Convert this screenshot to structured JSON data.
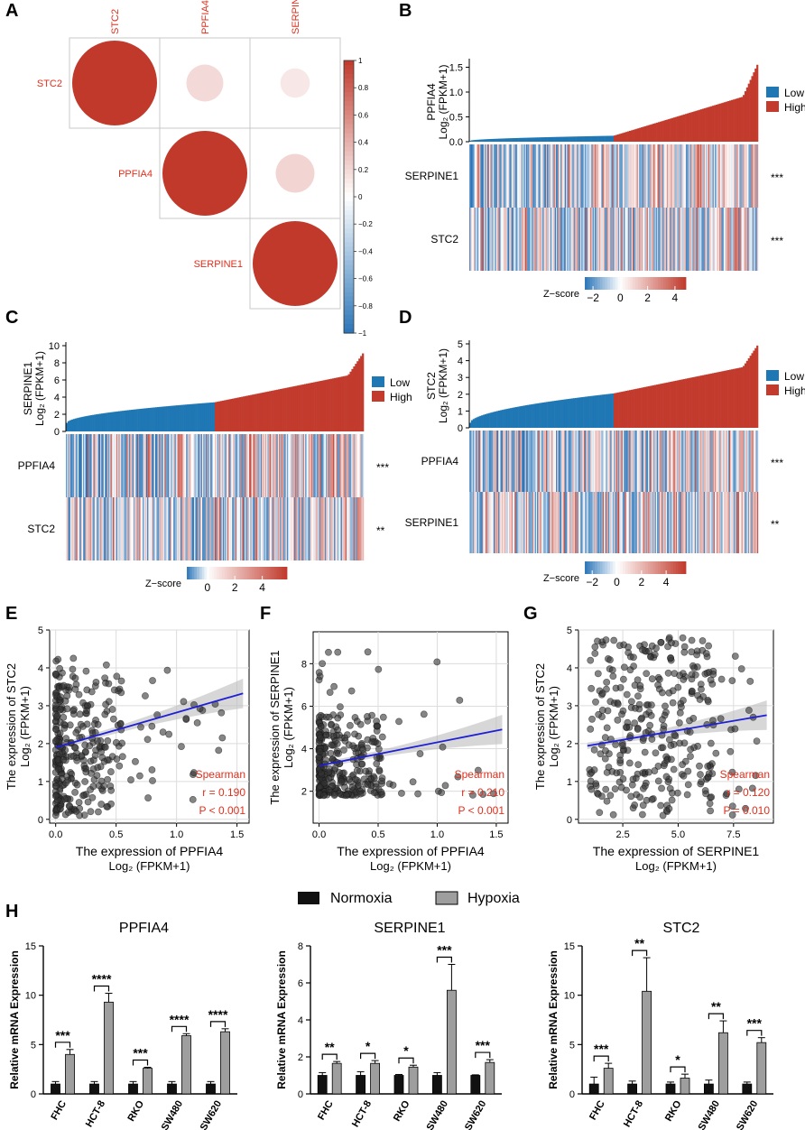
{
  "colors": {
    "red_dark": "#c23b2d",
    "blue_dark": "#1f77b4",
    "heat_blue": "#2b75b8",
    "heat_red": "#c0392b",
    "label_red": "#e0301e",
    "fit_line": "#1f1fd6",
    "ci_band": "#bdbdbd",
    "point": "#333333",
    "bar_normoxia": "#111111",
    "bar_hypoxia": "#9e9e9e"
  },
  "chart_data": [
    {
      "panel": "A",
      "type": "heatmap",
      "subtype": "correlation-circle-matrix",
      "genes": [
        "STC2",
        "PPFIA4",
        "SERPINE1"
      ],
      "matrix": [
        [
          1.0,
          0.19,
          0.12
        ],
        [
          0.19,
          1.0,
          0.21
        ],
        [
          0.12,
          0.21,
          1.0
        ]
      ],
      "colorbar_ticks": [
        "1",
        "0.8",
        "0.6",
        "0.4",
        "0.2",
        "0",
        "−0.2",
        "−0.4",
        "−0.6",
        "−0.8",
        "−1"
      ],
      "colorbar_values": [
        1,
        0.8,
        0.6,
        0.4,
        0.2,
        0,
        -0.2,
        -0.4,
        -0.6,
        -0.8,
        -1
      ]
    },
    {
      "panel": "B",
      "type": "bar",
      "subtype": "sorted-expression-with-heatmap",
      "sort_gene": "PPFIA4",
      "ylabel_top": "PPFIA4",
      "ylabel_bottom": "Log₂ (FPKM+1)",
      "ylim": [
        0,
        1.6
      ],
      "yticks": [
        "0.0",
        "0.5",
        "1.0",
        "1.5"
      ],
      "ytick_values": [
        0,
        0.5,
        1.0,
        1.5
      ],
      "split_fraction": 0.5,
      "min": 0.02,
      "median": 0.12,
      "max": 1.55,
      "legend": [
        "Low",
        "High"
      ],
      "rows": [
        {
          "gene": "SERPINE1",
          "sig": "***"
        },
        {
          "gene": "STC2",
          "sig": "***"
        }
      ],
      "zscore_label": "Z−score",
      "zscore_ticks": [
        "−2",
        "0",
        "2",
        "4"
      ],
      "zscore_tick_values": [
        -2,
        0,
        2,
        4
      ],
      "zscore_range": [
        -2.6,
        4.8
      ]
    },
    {
      "panel": "C",
      "type": "bar",
      "subtype": "sorted-expression-with-heatmap",
      "sort_gene": "SERPINE1",
      "ylabel_top": "SERPINE1",
      "ylabel_bottom": "Log₂ (FPKM+1)",
      "ylim": [
        0,
        10
      ],
      "yticks": [
        "0",
        "2",
        "4",
        "6",
        "8",
        "10"
      ],
      "ytick_values": [
        0,
        2,
        4,
        6,
        8,
        10
      ],
      "split_fraction": 0.5,
      "min": 1.0,
      "median": 3.4,
      "max": 9.1,
      "legend": [
        "Low",
        "High"
      ],
      "rows": [
        {
          "gene": "PPFIA4",
          "sig": "***"
        },
        {
          "gene": "STC2",
          "sig": "**"
        }
      ],
      "zscore_label": "Z−score",
      "zscore_ticks": [
        "0",
        "2",
        "4"
      ],
      "zscore_tick_values": [
        0,
        2,
        4
      ],
      "zscore_range": [
        -1.5,
        5.8
      ]
    },
    {
      "panel": "D",
      "type": "bar",
      "subtype": "sorted-expression-with-heatmap",
      "sort_gene": "STC2",
      "ylabel_top": "STC2",
      "ylabel_bottom": "Log₂ (FPKM+1)",
      "ylim": [
        0,
        5
      ],
      "yticks": [
        "0",
        "1",
        "2",
        "3",
        "4",
        "5"
      ],
      "ytick_values": [
        0,
        1,
        2,
        3,
        4,
        5
      ],
      "split_fraction": 0.5,
      "min": 0.3,
      "median": 2.05,
      "max": 4.9,
      "legend": [
        "Low",
        "High"
      ],
      "rows": [
        {
          "gene": "PPFIA4",
          "sig": "***"
        },
        {
          "gene": "SERPINE1",
          "sig": "**"
        }
      ],
      "zscore_label": "Z−score",
      "zscore_ticks": [
        "−2",
        "0",
        "2",
        "4"
      ],
      "zscore_tick_values": [
        -2,
        0,
        2,
        4
      ],
      "zscore_range": [
        -2.6,
        5.6
      ]
    },
    {
      "panel": "E",
      "type": "scatter",
      "xlabel": "The expression of PPFIA4",
      "xlabel2": "Log₂ (FPKM+1)",
      "ylabel": "The expression of STC2",
      "ylabel2": "Log₂ (FPKM+1)",
      "xlim": [
        -0.05,
        1.6
      ],
      "ylim": [
        -0.1,
        5.0
      ],
      "xticks": [
        "0.0",
        "0.5",
        "1.0",
        "1.5"
      ],
      "xtick_values": [
        0,
        0.5,
        1.0,
        1.5
      ],
      "yticks": [
        "0",
        "1",
        "2",
        "3",
        "4",
        "5"
      ],
      "ytick_values": [
        0,
        1,
        2,
        3,
        4,
        5
      ],
      "fit": {
        "intercept": 1.9,
        "slope": 0.92,
        "x_range": [
          0,
          1.55
        ]
      },
      "stats": [
        "Spearman",
        "r = 0.190",
        "P < 0.001"
      ]
    },
    {
      "panel": "F",
      "type": "scatter",
      "xlabel": "The expression of PPFIA4",
      "xlabel2": "Log₂ (FPKM+1)",
      "ylabel": "The expression of SERPINE1",
      "ylabel2": "Log₂ (FPKM+1)",
      "xlim": [
        -0.05,
        1.6
      ],
      "ylim": [
        0.5,
        9.5
      ],
      "xticks": [
        "0.0",
        "0.5",
        "1.0",
        "1.5"
      ],
      "xtick_values": [
        0,
        0.5,
        1.0,
        1.5
      ],
      "yticks": [
        "2",
        "4",
        "6",
        "8"
      ],
      "ytick_values": [
        2,
        4,
        6,
        8
      ],
      "fit": {
        "intercept": 3.2,
        "slope": 1.1,
        "x_range": [
          0,
          1.55
        ]
      },
      "stats": [
        "Spearman",
        "r = 0.210",
        "P < 0.001"
      ]
    },
    {
      "panel": "G",
      "type": "scatter",
      "xlabel": "The expression of SERPINE1",
      "xlabel2": "Log₂ (FPKM+1)",
      "ylabel": "The expression of STC2",
      "ylabel2": "Log₂ (FPKM+1)",
      "xlim": [
        0.5,
        9.3
      ],
      "ylim": [
        -0.1,
        5.0
      ],
      "xticks": [
        "2.5",
        "5.0",
        "7.5"
      ],
      "xtick_values": [
        2.5,
        5.0,
        7.5
      ],
      "yticks": [
        "0",
        "1",
        "2",
        "3",
        "4",
        "5"
      ],
      "ytick_values": [
        0,
        1,
        2,
        3,
        4,
        5
      ],
      "fit": {
        "intercept": 1.85,
        "slope": 0.1,
        "x_range": [
          0.9,
          9.0
        ]
      },
      "stats": [
        "Spearman",
        "r = 0.120",
        "P = 0.010"
      ]
    },
    {
      "panel": "H",
      "type": "bar",
      "title": "PPFIA4",
      "ylabel": "Relative mRNA Expression",
      "categories": [
        "FHC",
        "HCT-8",
        "RKO",
        "SW480",
        "SW620"
      ],
      "ylim": [
        0,
        15
      ],
      "yticks": [
        "0",
        "5",
        "10",
        "15"
      ],
      "ytick_values": [
        0,
        5,
        10,
        15
      ],
      "series": [
        {
          "name": "Normoxia",
          "values": [
            1.0,
            1.0,
            1.0,
            1.0,
            1.0
          ],
          "errors": [
            0.25,
            0.25,
            0.25,
            0.25,
            0.25
          ]
        },
        {
          "name": "Hypoxia",
          "values": [
            4.0,
            9.3,
            2.6,
            5.9,
            6.3
          ],
          "errors": [
            0.5,
            0.9,
            0.1,
            0.2,
            0.3
          ]
        }
      ],
      "significance": [
        "***",
        "****",
        "***",
        "****",
        "****"
      ]
    },
    {
      "panel": "H",
      "type": "bar",
      "title": "SERPINE1",
      "ylabel": "Relative  mRNA Expression",
      "categories": [
        "FHC",
        "HCT-8",
        "RKO",
        "SW480",
        "SW620"
      ],
      "ylim": [
        0,
        8
      ],
      "yticks": [
        "0",
        "2",
        "4",
        "6",
        "8"
      ],
      "ytick_values": [
        0,
        2,
        4,
        6,
        8
      ],
      "series": [
        {
          "name": "Normoxia",
          "values": [
            1.0,
            1.0,
            1.0,
            1.0,
            1.0
          ],
          "errors": [
            0.15,
            0.2,
            0.05,
            0.15,
            0.03
          ]
        },
        {
          "name": "Hypoxia",
          "values": [
            1.65,
            1.65,
            1.45,
            5.6,
            1.7
          ],
          "errors": [
            0.1,
            0.15,
            0.1,
            1.4,
            0.15
          ]
        }
      ],
      "significance": [
        "**",
        "*",
        "*",
        "***",
        "***"
      ]
    },
    {
      "panel": "H",
      "type": "bar",
      "title": "STC2",
      "ylabel": "Relative mRNA Expression",
      "categories": [
        "FHC",
        "HCT-8",
        "RKO",
        "SW480",
        "SW620"
      ],
      "ylim": [
        0,
        15
      ],
      "yticks": [
        "0",
        "5",
        "10",
        "15"
      ],
      "ytick_values": [
        0,
        5,
        10,
        15
      ],
      "series": [
        {
          "name": "Normoxia",
          "values": [
            1.0,
            1.0,
            1.0,
            1.0,
            1.0
          ],
          "errors": [
            0.7,
            0.3,
            0.2,
            0.4,
            0.2
          ]
        },
        {
          "name": "Hypoxia",
          "values": [
            2.6,
            10.4,
            1.6,
            6.2,
            5.2
          ],
          "errors": [
            0.5,
            3.4,
            0.4,
            1.2,
            0.5
          ]
        }
      ],
      "significance": [
        "***",
        "**",
        "*",
        "**",
        "***"
      ]
    }
  ],
  "panel_labels": [
    "A",
    "B",
    "C",
    "D",
    "E",
    "F",
    "G",
    "H"
  ],
  "legend_h": {
    "normoxia": "Normoxia",
    "hypoxia": "Hypoxia"
  }
}
